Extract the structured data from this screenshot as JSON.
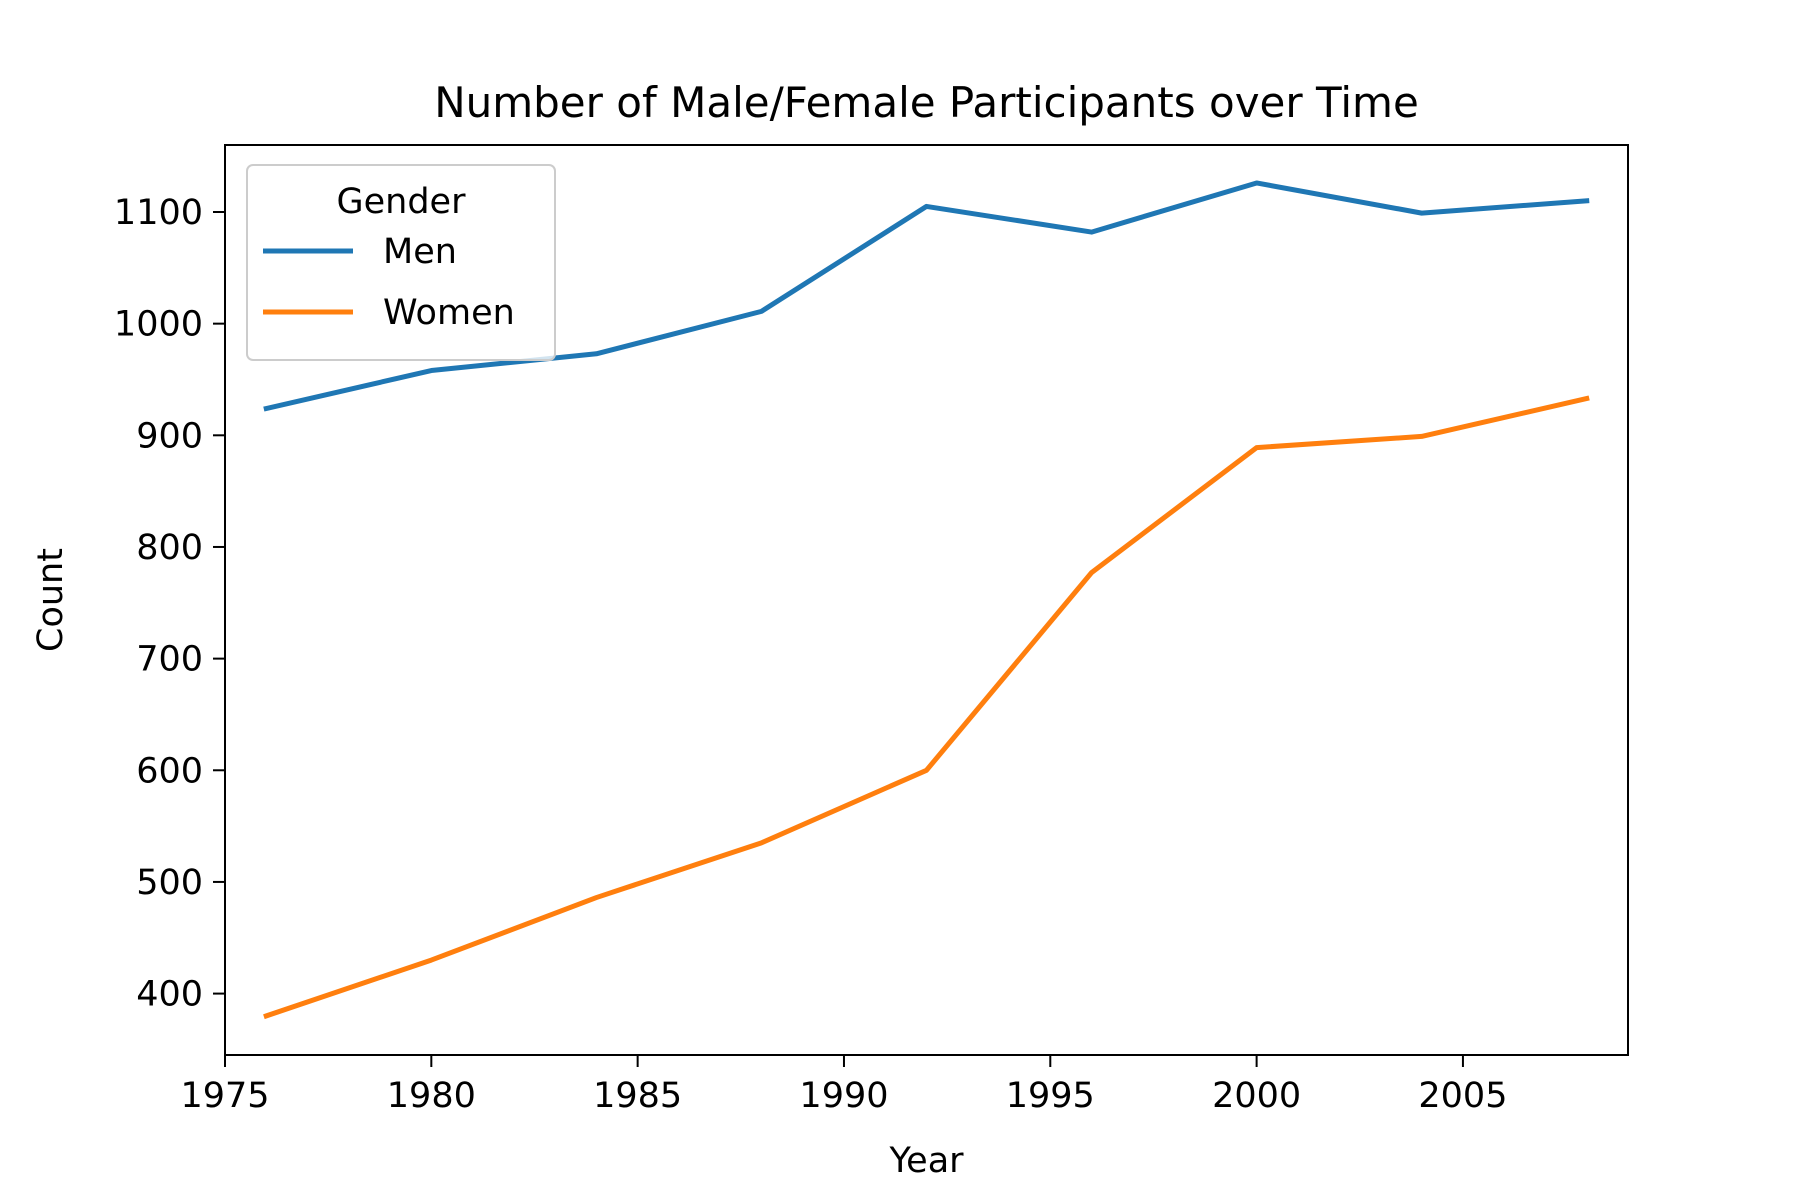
{
  "chart_data": {
    "type": "line",
    "title": "Number of Male/Female Participants over Time",
    "xlabel": "Year",
    "ylabel": "Count",
    "x": [
      1976,
      1980,
      1984,
      1988,
      1992,
      1996,
      2000,
      2004,
      2008
    ],
    "series": [
      {
        "name": "Men",
        "color": "#1f77b4",
        "values": [
          924,
          958,
          973,
          1011,
          1105,
          1082,
          1126,
          1099,
          1110
        ]
      },
      {
        "name": "Women",
        "color": "#ff7f0e",
        "values": [
          380,
          430,
          486,
          535,
          600,
          777,
          889,
          899,
          933
        ]
      }
    ],
    "xlim": [
      1975,
      2009
    ],
    "ylim": [
      345,
      1160
    ],
    "xticks": [
      1975,
      1980,
      1985,
      1990,
      1995,
      2000,
      2005
    ],
    "yticks": [
      400,
      500,
      600,
      700,
      800,
      900,
      1000,
      1100
    ],
    "grid": false,
    "legend": {
      "title": "Gender",
      "position": "top-left"
    }
  }
}
